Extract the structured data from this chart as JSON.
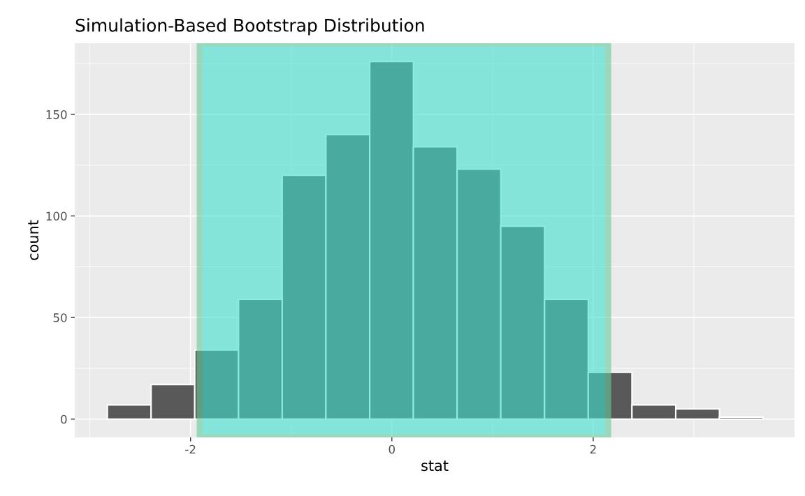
{
  "chart_data": {
    "type": "histogram",
    "title": "Simulation-Based Bootstrap Distribution",
    "xlabel": "stat",
    "ylabel": "count",
    "bins": [
      -2.826,
      -2.392,
      -1.958,
      -1.523,
      -1.089,
      -0.655,
      -0.22,
      0.214,
      0.648,
      1.082,
      1.517,
      1.951,
      2.385,
      2.82,
      3.254,
      3.688
    ],
    "values": [
      7,
      17,
      34,
      59,
      120,
      140,
      176,
      134,
      123,
      95,
      59,
      23,
      7,
      5,
      1
    ],
    "color": "#595959",
    "xlim": [
      -3.15,
      4.0
    ],
    "xticks": [
      -2,
      0,
      2
    ],
    "ylim": [
      -9,
      185
    ],
    "yticks": [
      0,
      50,
      100,
      150
    ],
    "bands": [
      {
        "axis": "x",
        "from": -1.91,
        "to": 2.15,
        "color": "#40e0d0"
      }
    ],
    "grid": true
  }
}
